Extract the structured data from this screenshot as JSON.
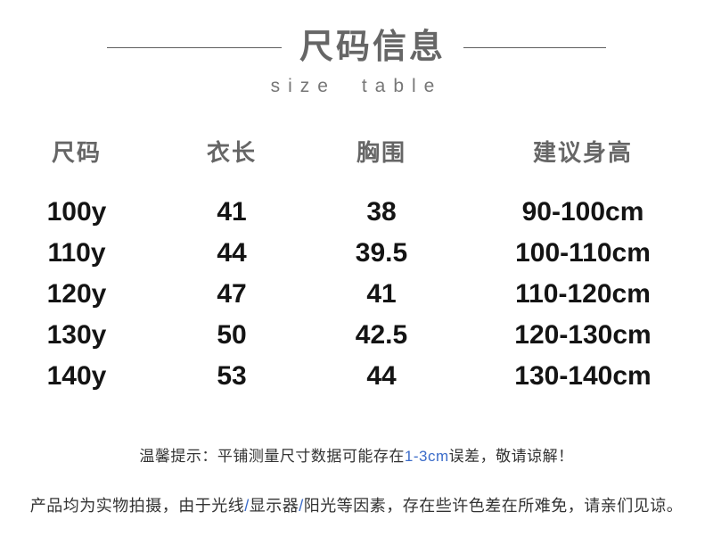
{
  "title": {
    "main": "尺码信息",
    "sub": "size table"
  },
  "table": {
    "headers": [
      "尺码",
      "衣长",
      "胸围",
      "建议身高"
    ],
    "rows": [
      [
        "100y",
        "41",
        "38",
        "90-100cm"
      ],
      [
        "110y",
        "44",
        "39.5",
        "100-110cm"
      ],
      [
        "120y",
        "47",
        "41",
        "110-120cm"
      ],
      [
        "130y",
        "50",
        "42.5",
        "120-130cm"
      ],
      [
        "140y",
        "53",
        "44",
        "130-140cm"
      ]
    ]
  },
  "notes": {
    "note1_prefix": "温馨提示：平铺测量尺寸数据可能存在",
    "note1_highlight": "1-3cm",
    "note1_suffix": "误差，敬请谅解！",
    "note2_part1": "产品均为实物拍摄，由于光线",
    "note2_slash1": "/",
    "note2_part2": "显示器",
    "note2_slash2": "/",
    "note2_part3": "阳光等因素，存在些许色差在所难免，请亲们见谅。"
  },
  "colors": {
    "accent_blue": "#3a6bc9",
    "title_gray": "#666666",
    "data_black": "#141414",
    "background": "#ffffff"
  }
}
